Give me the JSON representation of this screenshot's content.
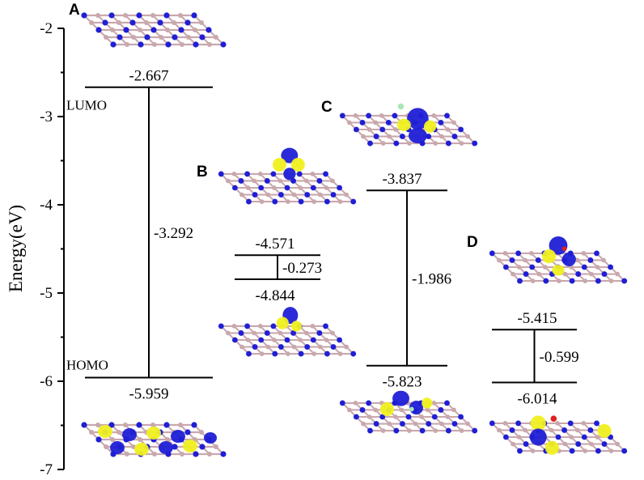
{
  "chart_data": {
    "type": "energy-level diagram",
    "ylabel": "Energy(eV)",
    "ylim": [
      -7,
      -2
    ],
    "yticks": [
      "-2",
      "-3",
      "-4",
      "-5",
      "-6",
      "-7"
    ],
    "level_names": {
      "lumo": "LUMO",
      "homo": "HOMO"
    },
    "colors": {
      "nitrogen": "#1f1fd6",
      "boron": "#c9a8ad",
      "orbital": "#f0f020",
      "oxygen": "#e02020",
      "fluorine": "#a8e8b8"
    },
    "systems": [
      {
        "label": "A",
        "lumo": -2.667,
        "homo": -5.959,
        "gap": -3.292,
        "lumo_text": "-2.667",
        "homo_text": "-5.959",
        "gap_text": "-3.292"
      },
      {
        "label": "B",
        "lumo": -4.571,
        "homo": -4.844,
        "gap": -0.273,
        "lumo_text": "-4.571",
        "homo_text": "-4.844",
        "gap_text": "-0.273"
      },
      {
        "label": "C",
        "lumo": -3.837,
        "homo": -5.823,
        "gap": -1.986,
        "lumo_text": "-3.837",
        "homo_text": "-5.823",
        "gap_text": "-1.986"
      },
      {
        "label": "D",
        "lumo": -5.415,
        "homo": -6.014,
        "gap": -0.599,
        "lumo_text": "-5.415",
        "homo_text": "-6.014",
        "gap_text": "-0.599"
      }
    ]
  }
}
